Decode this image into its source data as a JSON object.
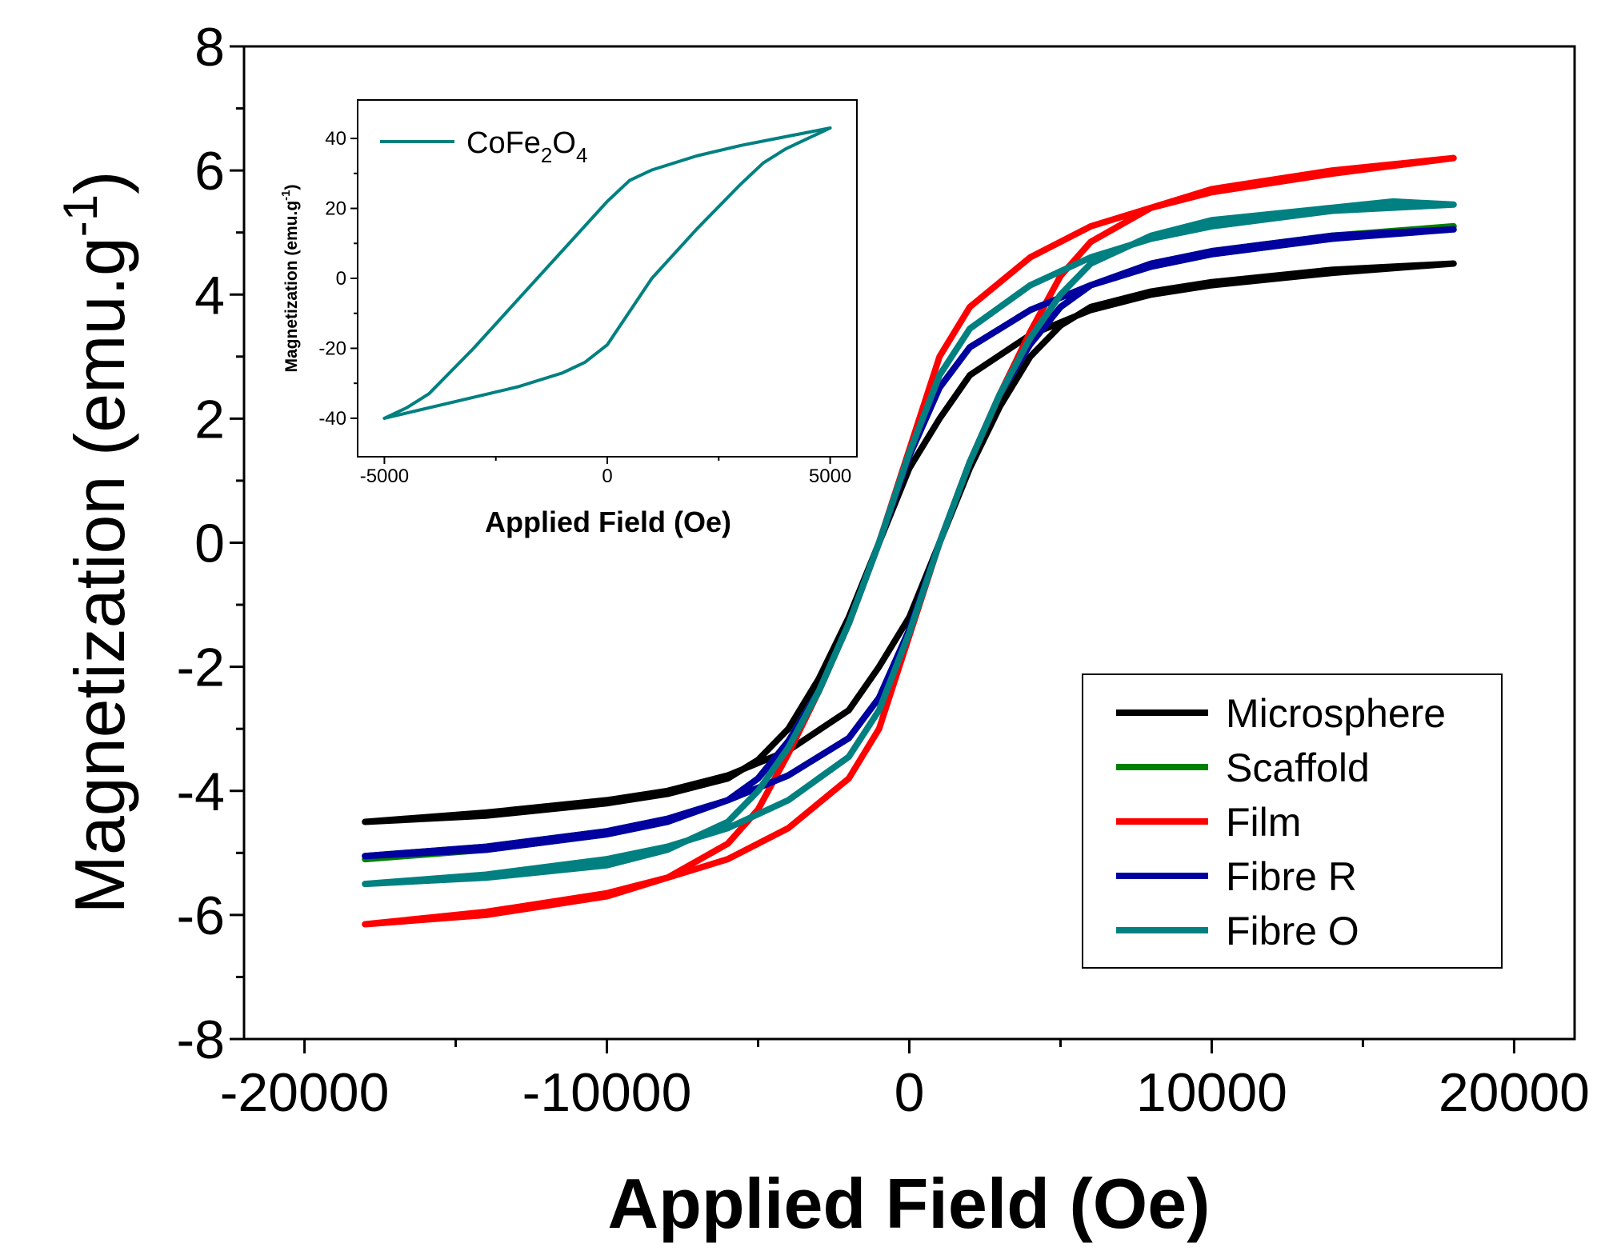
{
  "chart_data": [
    {
      "id": "main",
      "type": "line",
      "title": "",
      "xlabel": "Applied Field (Oe)",
      "ylabel": {
        "base": "Magnetization (emu.g",
        "sup": "-1",
        "end": ")"
      },
      "xlim": [
        -22000,
        22000
      ],
      "ylim": [
        -8,
        8
      ],
      "xticks": [
        -20000,
        -10000,
        0,
        10000,
        20000
      ],
      "xtick_labels": [
        "-20000",
        "-10000",
        "0",
        "10000",
        "20000"
      ],
      "yticks": [
        -8,
        -6,
        -4,
        -2,
        0,
        2,
        4,
        6,
        8
      ],
      "ytick_labels": [
        "-8",
        "-6",
        "-4",
        "-2",
        "0",
        "2",
        "4",
        "6",
        "8"
      ],
      "grid": false,
      "legend_position": "bottom-right",
      "series": [
        {
          "name": "Microsphere",
          "color": "#000000",
          "upper": [
            [
              -18000,
              -4.5
            ],
            [
              -14000,
              -4.35
            ],
            [
              -10000,
              -4.15
            ],
            [
              -8000,
              -4.0
            ],
            [
              -6000,
              -3.75
            ],
            [
              -4000,
              -3.35
            ],
            [
              -2000,
              -2.7
            ],
            [
              -1000,
              -2.0
            ],
            [
              0,
              -1.2
            ],
            [
              1000,
              0.0
            ],
            [
              2000,
              1.2
            ],
            [
              3000,
              2.2
            ],
            [
              4000,
              3.0
            ],
            [
              5000,
              3.5
            ],
            [
              6000,
              3.8
            ],
            [
              8000,
              4.05
            ],
            [
              10000,
              4.2
            ],
            [
              14000,
              4.4
            ],
            [
              18000,
              4.5
            ]
          ],
          "lower": [
            [
              18000,
              4.5
            ],
            [
              14000,
              4.35
            ],
            [
              10000,
              4.15
            ],
            [
              8000,
              4.0
            ],
            [
              6000,
              3.75
            ],
            [
              4000,
              3.35
            ],
            [
              2000,
              2.7
            ],
            [
              1000,
              2.0
            ],
            [
              0,
              1.2
            ],
            [
              -1000,
              0.0
            ],
            [
              -2000,
              -1.2
            ],
            [
              -3000,
              -2.2
            ],
            [
              -4000,
              -3.0
            ],
            [
              -5000,
              -3.5
            ],
            [
              -6000,
              -3.8
            ],
            [
              -8000,
              -4.05
            ],
            [
              -10000,
              -4.2
            ],
            [
              -14000,
              -4.4
            ],
            [
              -18000,
              -4.5
            ]
          ]
        },
        {
          "name": "Scaffold",
          "color": "#008000",
          "upper": [
            [
              -18000,
              -5.05
            ],
            [
              -14000,
              -4.9
            ],
            [
              -10000,
              -4.65
            ],
            [
              -8000,
              -4.45
            ],
            [
              -6000,
              -4.15
            ],
            [
              -4000,
              -3.75
            ],
            [
              -2000,
              -3.15
            ],
            [
              -1000,
              -2.5
            ],
            [
              0,
              -1.4
            ],
            [
              1000,
              0.0
            ],
            [
              2000,
              1.3
            ],
            [
              3000,
              2.4
            ],
            [
              4000,
              3.2
            ],
            [
              5000,
              3.8
            ],
            [
              6000,
              4.15
            ],
            [
              8000,
              4.5
            ],
            [
              10000,
              4.7
            ],
            [
              14000,
              4.95
            ],
            [
              18000,
              5.1
            ]
          ],
          "lower": [
            [
              18000,
              5.05
            ],
            [
              14000,
              4.9
            ],
            [
              10000,
              4.65
            ],
            [
              8000,
              4.45
            ],
            [
              6000,
              4.15
            ],
            [
              4000,
              3.75
            ],
            [
              2000,
              3.15
            ],
            [
              1000,
              2.5
            ],
            [
              0,
              1.4
            ],
            [
              -1000,
              0.0
            ],
            [
              -2000,
              -1.3
            ],
            [
              -3000,
              -2.4
            ],
            [
              -4000,
              -3.2
            ],
            [
              -5000,
              -3.8
            ],
            [
              -6000,
              -4.15
            ],
            [
              -8000,
              -4.5
            ],
            [
              -10000,
              -4.7
            ],
            [
              -14000,
              -4.95
            ],
            [
              -18000,
              -5.1
            ]
          ]
        },
        {
          "name": "Film",
          "color": "#ff0000",
          "upper": [
            [
              -18000,
              -6.15
            ],
            [
              -14000,
              -5.95
            ],
            [
              -10000,
              -5.65
            ],
            [
              -8000,
              -5.4
            ],
            [
              -6000,
              -5.1
            ],
            [
              -4000,
              -4.6
            ],
            [
              -2000,
              -3.8
            ],
            [
              -1000,
              -3.0
            ],
            [
              0,
              -1.5
            ],
            [
              1000,
              0.0
            ],
            [
              2000,
              1.3
            ],
            [
              3000,
              2.4
            ],
            [
              4000,
              3.4
            ],
            [
              5000,
              4.3
            ],
            [
              6000,
              4.85
            ],
            [
              8000,
              5.4
            ],
            [
              10000,
              5.7
            ],
            [
              14000,
              6.0
            ],
            [
              18000,
              6.2
            ]
          ],
          "lower": [
            [
              18000,
              6.15
            ],
            [
              14000,
              5.95
            ],
            [
              10000,
              5.65
            ],
            [
              8000,
              5.4
            ],
            [
              6000,
              5.1
            ],
            [
              4000,
              4.6
            ],
            [
              2000,
              3.8
            ],
            [
              1000,
              3.0
            ],
            [
              0,
              1.5
            ],
            [
              -1000,
              0.0
            ],
            [
              -2000,
              -1.3
            ],
            [
              -3000,
              -2.4
            ],
            [
              -4000,
              -3.4
            ],
            [
              -5000,
              -4.3
            ],
            [
              -6000,
              -4.85
            ],
            [
              -8000,
              -5.4
            ],
            [
              -10000,
              -5.7
            ],
            [
              -14000,
              -6.0
            ],
            [
              -18000,
              -6.15
            ]
          ]
        },
        {
          "name": "Fibre R",
          "color": "#0000a0",
          "upper": [
            [
              -18000,
              -5.05
            ],
            [
              -14000,
              -4.9
            ],
            [
              -10000,
              -4.65
            ],
            [
              -8000,
              -4.45
            ],
            [
              -6000,
              -4.15
            ],
            [
              -4000,
              -3.75
            ],
            [
              -2000,
              -3.15
            ],
            [
              -1000,
              -2.5
            ],
            [
              0,
              -1.4
            ],
            [
              1000,
              0.0
            ],
            [
              2000,
              1.3
            ],
            [
              3000,
              2.4
            ],
            [
              4000,
              3.2
            ],
            [
              5000,
              3.8
            ],
            [
              6000,
              4.15
            ],
            [
              8000,
              4.5
            ],
            [
              10000,
              4.7
            ],
            [
              14000,
              4.95
            ],
            [
              18000,
              5.05
            ]
          ],
          "lower": [
            [
              18000,
              5.05
            ],
            [
              14000,
              4.9
            ],
            [
              10000,
              4.65
            ],
            [
              8000,
              4.45
            ],
            [
              6000,
              4.15
            ],
            [
              4000,
              3.75
            ],
            [
              2000,
              3.15
            ],
            [
              1000,
              2.5
            ],
            [
              0,
              1.4
            ],
            [
              -1000,
              0.0
            ],
            [
              -2000,
              -1.3
            ],
            [
              -3000,
              -2.4
            ],
            [
              -4000,
              -3.2
            ],
            [
              -5000,
              -3.8
            ],
            [
              -6000,
              -4.15
            ],
            [
              -8000,
              -4.5
            ],
            [
              -10000,
              -4.7
            ],
            [
              -14000,
              -4.95
            ],
            [
              -18000,
              -5.05
            ]
          ]
        },
        {
          "name": "Fibre O",
          "color": "#008080",
          "upper": [
            [
              -18000,
              -5.5
            ],
            [
              -14000,
              -5.35
            ],
            [
              -10000,
              -5.1
            ],
            [
              -8000,
              -4.9
            ],
            [
              -6000,
              -4.6
            ],
            [
              -4000,
              -4.15
            ],
            [
              -2000,
              -3.45
            ],
            [
              -1000,
              -2.7
            ],
            [
              0,
              -1.45
            ],
            [
              1000,
              0.0
            ],
            [
              2000,
              1.3
            ],
            [
              3000,
              2.4
            ],
            [
              4000,
              3.3
            ],
            [
              5000,
              4.0
            ],
            [
              6000,
              4.5
            ],
            [
              8000,
              4.95
            ],
            [
              10000,
              5.2
            ],
            [
              14000,
              5.4
            ],
            [
              16000,
              5.5
            ],
            [
              18000,
              5.45
            ]
          ],
          "lower": [
            [
              18000,
              5.5
            ],
            [
              14000,
              5.35
            ],
            [
              10000,
              5.1
            ],
            [
              8000,
              4.9
            ],
            [
              6000,
              4.6
            ],
            [
              4000,
              4.15
            ],
            [
              2000,
              3.45
            ],
            [
              1000,
              2.7
            ],
            [
              0,
              1.45
            ],
            [
              -1000,
              0.0
            ],
            [
              -2000,
              -1.3
            ],
            [
              -3000,
              -2.4
            ],
            [
              -4000,
              -3.3
            ],
            [
              -5000,
              -4.0
            ],
            [
              -6000,
              -4.5
            ],
            [
              -8000,
              -4.95
            ],
            [
              -10000,
              -5.2
            ],
            [
              -14000,
              -5.4
            ],
            [
              -18000,
              -5.5
            ]
          ]
        }
      ]
    },
    {
      "id": "inset",
      "type": "line",
      "title": "",
      "xlabel": "Applied Field (Oe)",
      "ylabel": {
        "base": "Magnetization (emu.g",
        "sup": "-1",
        "end": ")"
      },
      "xlim": [
        -5600,
        5600
      ],
      "ylim": [
        -51,
        51
      ],
      "xticks": [
        -5000,
        0,
        5000
      ],
      "xtick_labels": [
        "-5000",
        "0",
        "5000"
      ],
      "yticks": [
        -40,
        -20,
        0,
        20,
        40
      ],
      "ytick_labels": [
        "-40",
        "-20",
        "0",
        "20",
        "40"
      ],
      "grid": false,
      "legend_position": "top-left",
      "series": [
        {
          "name": {
            "p1": "CoFe",
            "s1": "2",
            "p2": "O",
            "s2": "4"
          },
          "color": "#008080",
          "upper": [
            [
              -5000,
              -40
            ],
            [
              -4500,
              -37
            ],
            [
              -4000,
              -33
            ],
            [
              -3000,
              -20
            ],
            [
              -2000,
              -6
            ],
            [
              -1000,
              8
            ],
            [
              0,
              22
            ],
            [
              500,
              28
            ],
            [
              1000,
              31
            ],
            [
              2000,
              35
            ],
            [
              3000,
              38
            ],
            [
              4000,
              40.5
            ],
            [
              5000,
              43
            ]
          ],
          "lower": [
            [
              5000,
              43
            ],
            [
              4500,
              40
            ],
            [
              4000,
              37
            ],
            [
              3500,
              33
            ],
            [
              3000,
              27
            ],
            [
              2000,
              14
            ],
            [
              1000,
              0
            ],
            [
              0,
              -19
            ],
            [
              -500,
              -24
            ],
            [
              -1000,
              -27
            ],
            [
              -2000,
              -31
            ],
            [
              -3000,
              -34
            ],
            [
              -4000,
              -37
            ],
            [
              -5000,
              -40
            ]
          ]
        }
      ]
    }
  ]
}
